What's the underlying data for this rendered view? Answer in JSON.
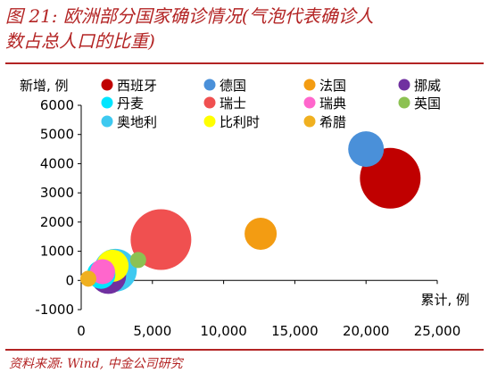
{
  "title": {
    "line1": "图 21: 欧洲部分国家确诊情况(气泡代表确诊人",
    "line2": "数占总人口的比重)"
  },
  "source": "资料来源: Wind, 中金公司研究",
  "chart_data": {
    "type": "scatter",
    "title": "图 21: 欧洲部分国家确诊情况(气泡代表确诊人数占总人口的比重)",
    "xlabel": "累计, 例",
    "ylabel": "新增, 例",
    "xlim": [
      0,
      25000
    ],
    "ylim": [
      -1000,
      6000
    ],
    "xticks": [
      "0",
      "5,000",
      "10,000",
      "15,000",
      "20,000",
      "25,000"
    ],
    "yticks": [
      "6000",
      "5000",
      "4000",
      "3000",
      "2000",
      "1000",
      "0",
      "-1000"
    ],
    "grid": false,
    "legend_position": "top",
    "series": [
      {
        "name": "西班牙",
        "color": "#c00000",
        "points": [
          {
            "x": 21700,
            "y": 3500,
            "size": 34
          }
        ]
      },
      {
        "name": "德国",
        "color": "#4a90d9",
        "points": [
          {
            "x": 20000,
            "y": 4500,
            "size": 20
          }
        ]
      },
      {
        "name": "法国",
        "color": "#f39c12",
        "points": [
          {
            "x": 12600,
            "y": 1600,
            "size": 18
          }
        ]
      },
      {
        "name": "挪威",
        "color": "#7030a0",
        "points": [
          {
            "x": 1900,
            "y": 150,
            "size": 20
          }
        ]
      },
      {
        "name": "丹麦",
        "color": "#00e5ff",
        "points": [
          {
            "x": 1400,
            "y": 200,
            "size": 16
          }
        ]
      },
      {
        "name": "瑞士",
        "color": "#f05050",
        "points": [
          {
            "x": 5600,
            "y": 1400,
            "size": 34
          }
        ]
      },
      {
        "name": "瑞典",
        "color": "#ff66cc",
        "points": [
          {
            "x": 1500,
            "y": 300,
            "size": 14
          }
        ]
      },
      {
        "name": "英国",
        "color": "#8cc152",
        "points": [
          {
            "x": 4000,
            "y": 700,
            "size": 9
          }
        ]
      },
      {
        "name": "奥地利",
        "color": "#3ec9f0",
        "points": [
          {
            "x": 2400,
            "y": 350,
            "size": 24
          }
        ]
      },
      {
        "name": "比利时",
        "color": "#ffff00",
        "points": [
          {
            "x": 2200,
            "y": 500,
            "size": 18
          }
        ]
      },
      {
        "name": "希腊",
        "color": "#f0b020",
        "points": [
          {
            "x": 500,
            "y": 60,
            "size": 9
          }
        ]
      }
    ]
  }
}
